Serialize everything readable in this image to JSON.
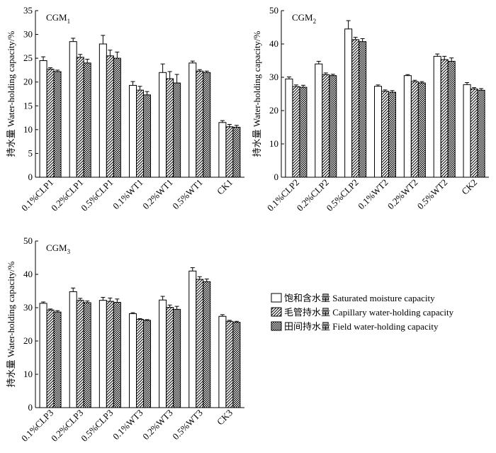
{
  "chart_data": [
    {
      "type": "bar",
      "title": "CGM",
      "title_sub": "1",
      "ylabel": "持水量 Water-holding capacity/%",
      "ylim": [
        0,
        35
      ],
      "yticks": [
        0,
        5,
        10,
        15,
        20,
        25,
        30,
        35
      ],
      "categories": [
        "0.1%CLP1",
        "0.2%CLP1",
        "0.5%CLP1",
        "0.1%WT1",
        "0.2%WT1",
        "0.5%WT1",
        "CK1"
      ],
      "series": [
        {
          "name": "Saturated moisture capacity",
          "values": [
            24.5,
            28.5,
            28.0,
            19.3,
            22.0,
            24.0,
            11.5
          ],
          "errors": [
            0.8,
            0.7,
            1.8,
            0.8,
            1.8,
            0.4,
            0.4
          ]
        },
        {
          "name": "Capillary water-holding capacity",
          "values": [
            22.7,
            25.2,
            25.5,
            18.3,
            20.7,
            22.3,
            10.6
          ],
          "errors": [
            0.3,
            0.6,
            1.2,
            0.8,
            1.5,
            0.3,
            0.5
          ]
        },
        {
          "name": "Field water-holding capacity",
          "values": [
            22.2,
            24.0,
            25.0,
            17.3,
            19.8,
            22.0,
            10.5
          ],
          "errors": [
            0.3,
            0.8,
            1.3,
            0.7,
            1.8,
            0.3,
            0.4
          ]
        }
      ]
    },
    {
      "type": "bar",
      "title": "CGM",
      "title_sub": "2",
      "ylabel": "持水量 Water-holding capacity/%",
      "ylim": [
        0,
        50
      ],
      "yticks": [
        0,
        10,
        20,
        30,
        40,
        50
      ],
      "categories": [
        "0.1%CLP2",
        "0.2%CLP2",
        "0.5%CLP2",
        "0.1%WT2",
        "0.2%WT2",
        "0.5%WT2",
        "CK2"
      ],
      "series": [
        {
          "name": "Saturated moisture capacity",
          "values": [
            29.5,
            34.0,
            44.5,
            27.3,
            30.5,
            36.3,
            27.8
          ],
          "errors": [
            0.6,
            0.8,
            2.5,
            0.4,
            0.3,
            0.7,
            0.6
          ]
        },
        {
          "name": "Capillary water-holding capacity",
          "values": [
            27.2,
            30.8,
            41.3,
            25.8,
            28.7,
            35.3,
            26.5
          ],
          "errors": [
            0.5,
            0.5,
            0.7,
            0.4,
            0.4,
            1.0,
            0.4
          ]
        },
        {
          "name": "Field water-holding capacity",
          "values": [
            27.0,
            30.5,
            40.7,
            25.5,
            28.3,
            34.8,
            26.1
          ],
          "errors": [
            0.6,
            0.4,
            0.9,
            0.5,
            0.4,
            1.0,
            0.5
          ]
        }
      ]
    },
    {
      "type": "bar",
      "title": "CGM",
      "title_sub": "3",
      "ylabel": "持水量 Water-holding capacity/%",
      "ylim": [
        0,
        50
      ],
      "yticks": [
        0,
        10,
        20,
        30,
        40,
        50
      ],
      "categories": [
        "0.1%CLP3",
        "0.2%CLP3",
        "0.5%CLP3",
        "0.1%WT3",
        "0.2%WT3",
        "0.5%WT3",
        "CK3"
      ],
      "series": [
        {
          "name": "Saturated moisture capacity",
          "values": [
            31.3,
            34.8,
            32.2,
            28.2,
            32.3,
            41.0,
            27.4
          ],
          "errors": [
            0.4,
            1.1,
            0.9,
            0.3,
            1.1,
            1.0,
            0.5
          ]
        },
        {
          "name": "Capillary water-holding capacity",
          "values": [
            29.3,
            32.2,
            31.9,
            26.5,
            30.1,
            38.5,
            25.9
          ],
          "errors": [
            0.3,
            0.6,
            1.0,
            0.2,
            0.7,
            0.8,
            0.3
          ]
        },
        {
          "name": "Field water-holding capacity",
          "values": [
            28.7,
            31.5,
            31.6,
            26.2,
            29.5,
            37.8,
            25.6
          ],
          "errors": [
            0.4,
            0.5,
            1.0,
            0.2,
            0.9,
            0.8,
            0.3
          ]
        }
      ]
    }
  ],
  "legend": [
    {
      "label": "饱和含水量 Saturated moisture capacity",
      "pattern": "blank"
    },
    {
      "label": "毛管持水量 Capillary water-holding capacity",
      "pattern": "hatch"
    },
    {
      "label": "田间持水量 Field water-holding capacity",
      "pattern": "cross"
    }
  ]
}
